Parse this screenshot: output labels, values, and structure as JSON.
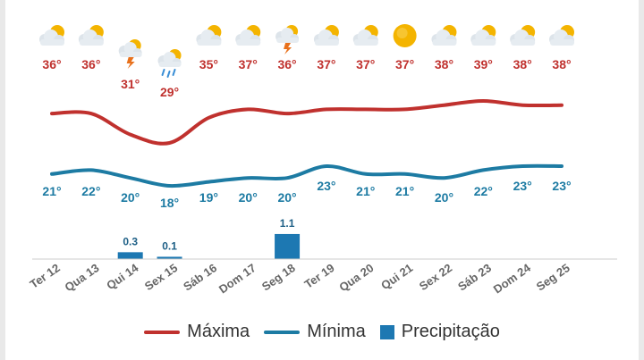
{
  "colors": {
    "max": "#c0312e",
    "min": "#1d7ba3",
    "precip": "#1d78b2",
    "precip_label": "#1d5f86",
    "axis_text": "#666666"
  },
  "legend": {
    "max_label": "Máxima",
    "min_label": "Mínima",
    "precip_label": "Precipitação"
  },
  "chart_data": {
    "type": "line",
    "categories": [
      "Ter 12",
      "Qua 13",
      "Qui 14",
      "Sex 15",
      "Sáb 16",
      "Dom 17",
      "Seg 18",
      "Ter 19",
      "Qua 20",
      "Qui 21",
      "Sex 22",
      "Sáb 23",
      "Dom 24",
      "Seg 25"
    ],
    "icons": [
      "sun-cloud-icon",
      "sun-cloud-icon",
      "thunderstorm-icon",
      "rain-cloud-icon",
      "sun-cloud-icon",
      "sun-cloud-icon",
      "thunderstorm-icon",
      "sun-cloud-icon",
      "sun-cloud-icon",
      "sun-icon",
      "sun-cloud-icon",
      "sun-cloud-icon",
      "sun-cloud-icon",
      "sun-cloud-icon"
    ],
    "series": [
      {
        "name": "Máxima",
        "values": [
          36,
          36,
          31,
          29,
          35,
          37,
          36,
          37,
          37,
          37,
          38,
          39,
          38,
          38
        ],
        "labels": [
          "36°",
          "36°",
          "31°",
          "29°",
          "35°",
          "37°",
          "36°",
          "37°",
          "37°",
          "37°",
          "38°",
          "39°",
          "38°",
          "38°"
        ]
      },
      {
        "name": "Mínima",
        "values": [
          21,
          22,
          20,
          18,
          19,
          20,
          20,
          23,
          21,
          21,
          20,
          22,
          23,
          23
        ],
        "labels": [
          "21°",
          "22°",
          "20°",
          "18°",
          "19°",
          "20°",
          "20°",
          "23°",
          "21°",
          "21°",
          "20°",
          "22°",
          "23°",
          "23°"
        ]
      },
      {
        "name": "Precipitação",
        "values": [
          0,
          0,
          0.3,
          0.1,
          0,
          0,
          1.1,
          0,
          0,
          0,
          0,
          0,
          0,
          0
        ],
        "labels": [
          "",
          "",
          "0.3",
          "0.1",
          "",
          "",
          "1.1",
          "",
          "",
          "",
          "",
          "",
          "",
          ""
        ]
      }
    ],
    "legend_position": "bottom",
    "grid": false
  }
}
